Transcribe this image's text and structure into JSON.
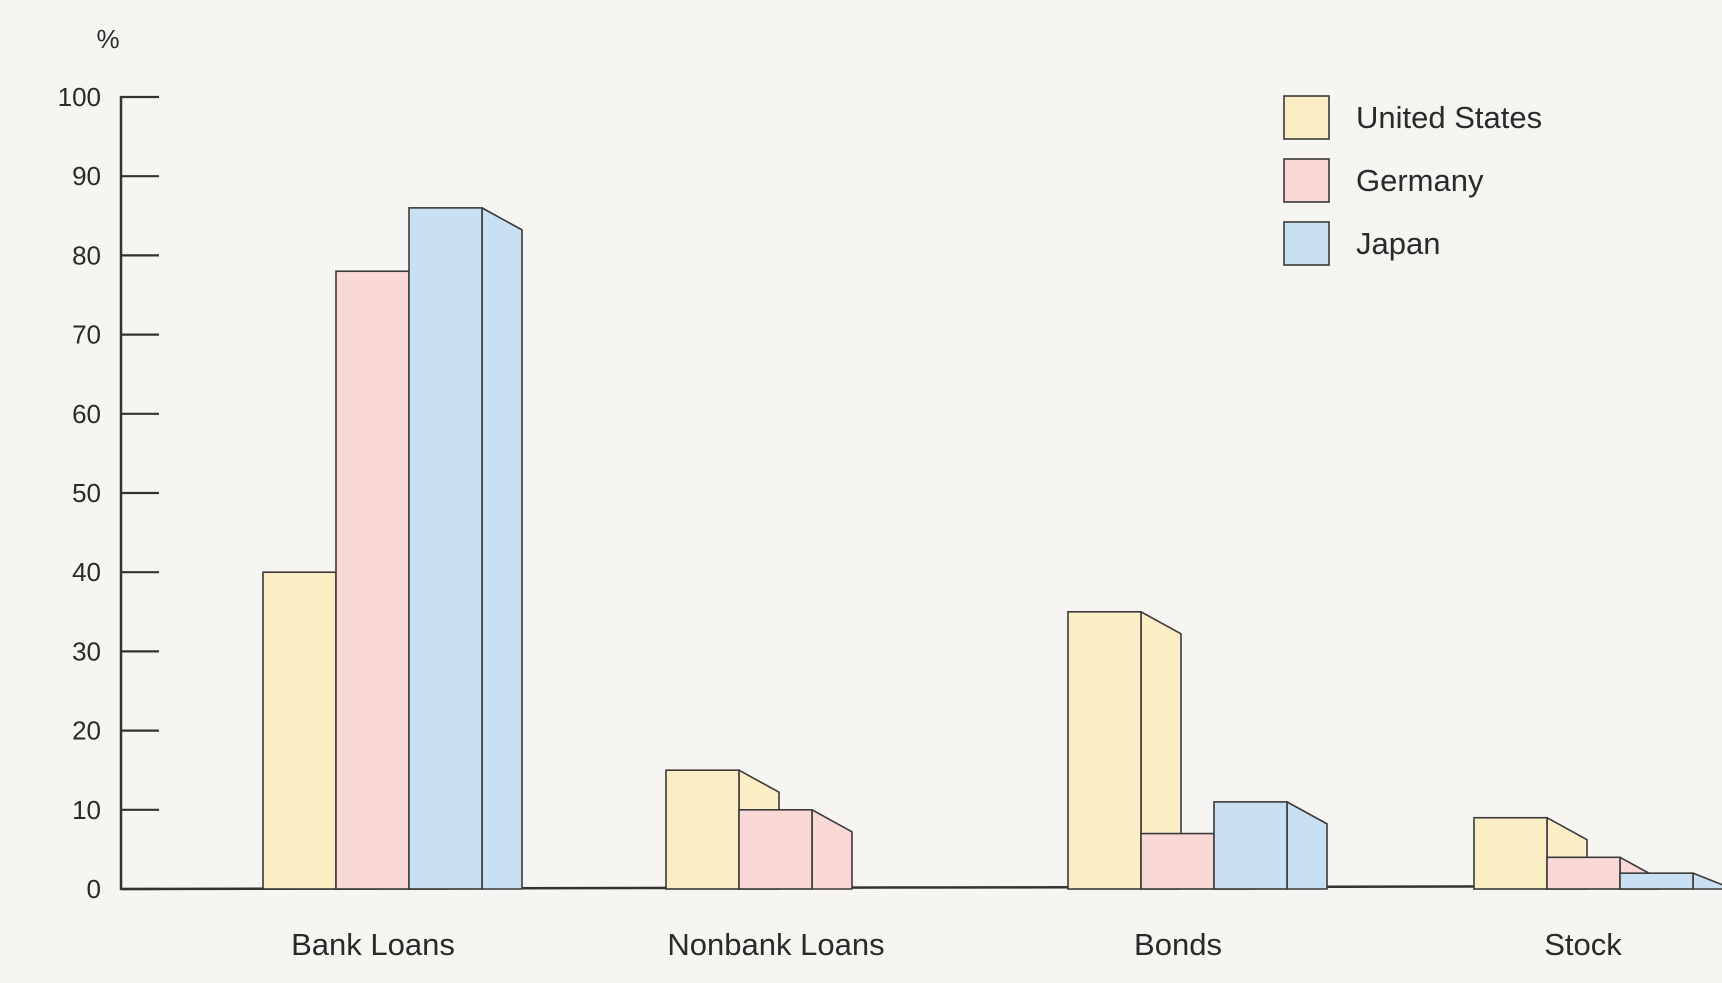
{
  "chart_data": {
    "type": "bar",
    "unit_label": "%",
    "categories": [
      "Bank Loans",
      "Nonbank Loans",
      "Bonds",
      "Stock"
    ],
    "series": [
      {
        "name": "United States",
        "values": [
          40,
          15,
          35,
          9
        ],
        "color": "#fbeec4"
      },
      {
        "name": "Germany",
        "values": [
          78,
          10,
          7,
          4
        ],
        "color": "#f9d8d6"
      },
      {
        "name": "Japan",
        "values": [
          86,
          0,
          11,
          2
        ],
        "color": "#c9e0f2"
      }
    ],
    "yticks": [
      0,
      10,
      20,
      30,
      40,
      50,
      60,
      70,
      80,
      90,
      100
    ],
    "ylim": [
      0,
      100
    ],
    "legend_position": "top-right",
    "grid": false,
    "style": "3d-bars"
  }
}
